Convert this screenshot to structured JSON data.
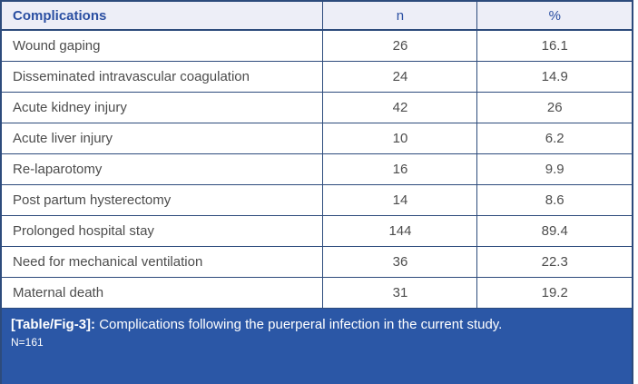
{
  "colors": {
    "border_navy": "#2d4b7c",
    "header_bg": "#edeef7",
    "header_text": "#2b4fa2",
    "caption_bg": "#2b57a6",
    "caption_text": "#ffffff",
    "body_text": "#4d4d4d"
  },
  "table": {
    "columns": [
      "Complications",
      "n",
      "%"
    ],
    "rows": [
      {
        "label": "Wound gaping",
        "n": "26",
        "pct": "16.1"
      },
      {
        "label": "Disseminated intravascular coagulation",
        "n": "24",
        "pct": "14.9"
      },
      {
        "label": "Acute kidney injury",
        "n": "42",
        "pct": "26"
      },
      {
        "label": "Acute liver injury",
        "n": "10",
        "pct": "6.2"
      },
      {
        "label": "Re-laparotomy",
        "n": "16",
        "pct": "9.9"
      },
      {
        "label": "Post partum hysterectomy",
        "n": "14",
        "pct": "8.6"
      },
      {
        "label": "Prolonged hospital stay",
        "n": "144",
        "pct": "89.4"
      },
      {
        "label": "Need for mechanical ventilation",
        "n": "36",
        "pct": "22.3"
      },
      {
        "label": "Maternal death",
        "n": "31",
        "pct": "19.2"
      }
    ]
  },
  "caption": {
    "tag": "[Table/Fig-3]:",
    "text": "Complications following the puerperal infection in the current study.",
    "note": "N=161"
  },
  "chart_data": {
    "type": "table",
    "title": "[Table/Fig-3]: Complications following the puerperal infection in the current study. N=161",
    "categories": [
      "Wound gaping",
      "Disseminated intravascular coagulation",
      "Acute kidney injury",
      "Acute liver injury",
      "Re-laparotomy",
      "Post partum hysterectomy",
      "Prolonged hospital stay",
      "Need for mechanical ventilation",
      "Maternal death"
    ],
    "series": [
      {
        "name": "n",
        "values": [
          26,
          24,
          42,
          10,
          16,
          14,
          144,
          36,
          31
        ]
      },
      {
        "name": "%",
        "values": [
          16.1,
          14.9,
          26,
          6.2,
          9.9,
          8.6,
          89.4,
          22.3,
          19.2
        ]
      }
    ]
  }
}
